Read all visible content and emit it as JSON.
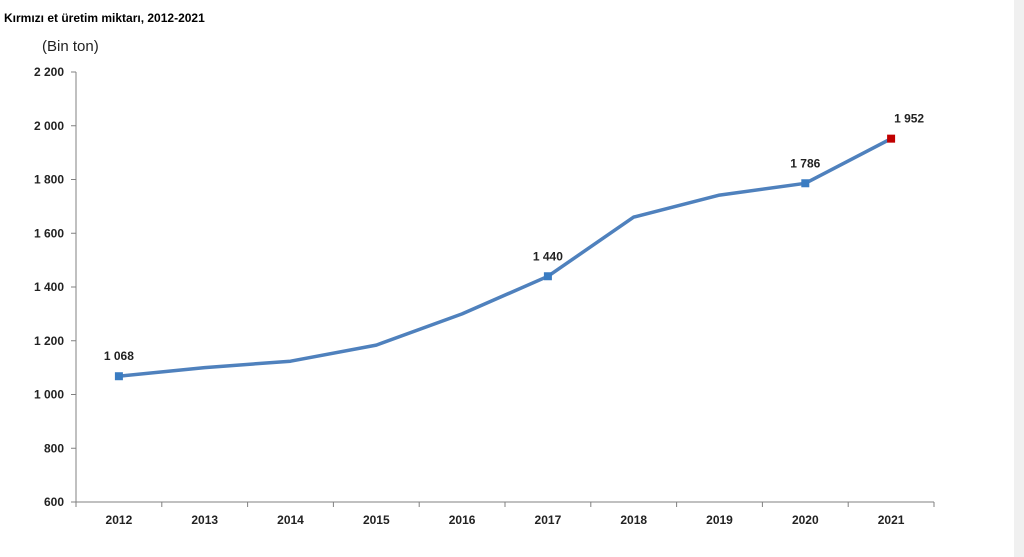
{
  "title": "Kırmızı et üretim miktarı, 2012-2021",
  "chart_data": {
    "type": "line",
    "title": "Kırmızı et üretim miktarı, 2012-2021",
    "ylabel": "(Bin ton)",
    "xlabel": "",
    "categories": [
      "2012",
      "2013",
      "2014",
      "2015",
      "2016",
      "2017",
      "2018",
      "2019",
      "2020",
      "2021"
    ],
    "series": [
      {
        "values": [
          1068,
          1100,
          1124,
          1184,
          1300,
          1440,
          1660,
          1742,
          1786,
          1952
        ]
      }
    ],
    "data_labels": [
      {
        "index": 0,
        "text": "1 068"
      },
      {
        "index": 5,
        "text": "1 440"
      },
      {
        "index": 8,
        "text": "1 786"
      },
      {
        "index": 9,
        "text": "1 952"
      }
    ],
    "marker_indices": [
      0,
      5,
      8,
      9
    ],
    "highlight_index": 9,
    "ylim": [
      600,
      2200
    ],
    "yticks": [
      600,
      800,
      1000,
      1200,
      1400,
      1600,
      1800,
      2000,
      2200
    ],
    "ytick_labels": [
      "600",
      "800",
      "1 000",
      "1 200",
      "1 400",
      "1 600",
      "1 800",
      "2 000",
      "2 200"
    ],
    "grid": false,
    "colors": {
      "line": "#4f81bd",
      "marker": "#3a7cc2",
      "highlight": "#c00000",
      "axis": "#808080"
    }
  }
}
